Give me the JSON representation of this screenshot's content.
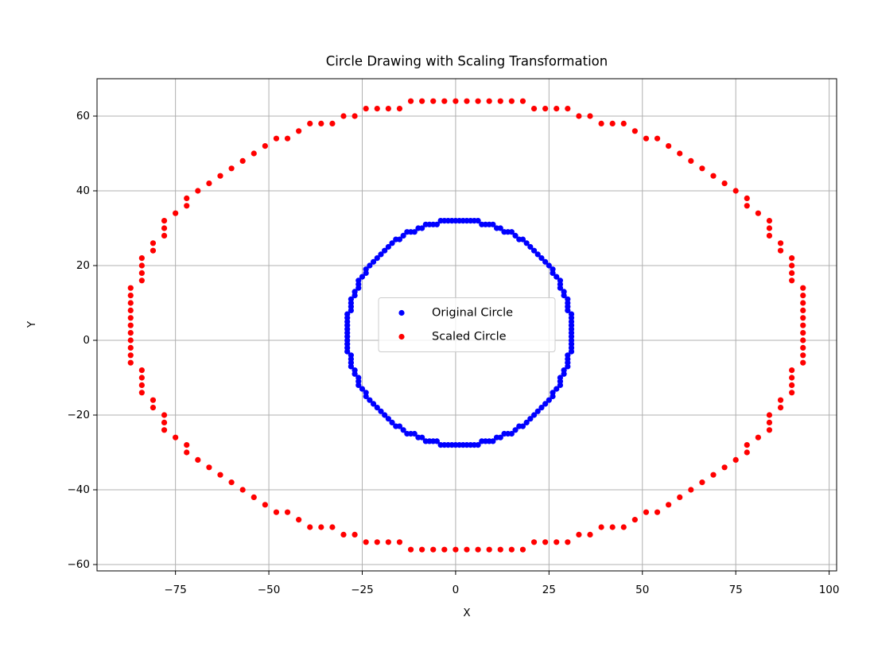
{
  "chart_data": {
    "type": "scatter",
    "title": "Circle Drawing with Scaling Transformation",
    "x_label": "X",
    "y_label": "Y",
    "xlim": [
      -96,
      102
    ],
    "ylim": [
      -61.7,
      70
    ],
    "xticks": [
      {
        "value": -75,
        "label": "−75"
      },
      {
        "value": -50,
        "label": "−50"
      },
      {
        "value": -25,
        "label": "−25"
      },
      0,
      25,
      50,
      75,
      100
    ],
    "yticks": [
      {
        "value": -60,
        "label": "−60"
      },
      {
        "value": -40,
        "label": "−40"
      },
      {
        "value": -20,
        "label": "−20"
      },
      0,
      20,
      40,
      60
    ],
    "grid": true,
    "legend": "center",
    "series": [
      {
        "name": "Original Circle",
        "color": "#0000ff",
        "x": [
          1,
          2,
          3,
          4,
          5,
          6,
          7,
          8,
          9,
          10,
          11,
          12,
          13,
          14,
          15,
          16,
          17,
          18,
          19,
          20,
          21,
          22,
          23,
          24,
          25,
          26,
          26,
          27,
          28,
          28,
          28,
          29,
          29,
          30,
          30,
          30,
          30,
          31,
          31,
          31,
          31,
          31,
          31,
          31,
          31,
          31,
          31,
          31,
          30,
          30,
          30,
          30,
          29,
          29,
          28,
          28,
          28,
          27,
          26,
          26,
          25,
          24,
          23,
          22,
          21,
          20,
          19,
          18,
          17,
          16,
          15,
          14,
          13,
          12,
          11,
          10,
          9,
          8,
          7,
          6,
          5,
          4,
          3,
          2,
          1,
          0,
          -1,
          -2,
          -3,
          -4,
          -5,
          -6,
          -7,
          -8,
          -9,
          -10,
          -11,
          -12,
          -13,
          -14,
          -15,
          -16,
          -17,
          -18,
          -19,
          -20,
          -21,
          -22,
          -23,
          -24,
          -24,
          -25,
          -26,
          -26,
          -26,
          -27,
          -27,
          -28,
          -28,
          -28,
          -28,
          -29,
          -29,
          -29,
          -29,
          -29,
          -29,
          -29,
          -29,
          -29,
          -29,
          -29,
          -28,
          -28,
          -28,
          -28,
          -27,
          -27,
          -26,
          -26,
          -26,
          -25,
          -24,
          -24,
          -23,
          -22,
          -21,
          -20,
          -19,
          -18,
          -17,
          -16,
          -15,
          -14,
          -13,
          -12,
          -11,
          -10,
          -9,
          -8,
          -7,
          -6,
          -5,
          -4,
          -3,
          -2,
          -1,
          0
        ],
        "y": [
          32,
          32,
          32,
          32,
          32,
          32,
          31,
          31,
          31,
          31,
          30,
          30,
          29,
          29,
          29,
          28,
          27,
          27,
          26,
          25,
          24,
          23,
          22,
          21,
          20,
          19,
          18,
          17,
          16,
          15,
          14,
          13,
          12,
          11,
          10,
          9,
          8,
          7,
          6,
          5,
          4,
          3,
          2,
          1,
          0,
          -1,
          -2,
          -3,
          -4,
          -5,
          -6,
          -7,
          -8,
          -9,
          -10,
          -11,
          -12,
          -13,
          -14,
          -15,
          -16,
          -17,
          -18,
          -19,
          -20,
          -21,
          -22,
          -23,
          -23,
          -24,
          -25,
          -25,
          -25,
          -26,
          -26,
          -27,
          -27,
          -27,
          -27,
          -28,
          -28,
          -28,
          -28,
          -28,
          -28,
          -28,
          -28,
          -28,
          -28,
          -28,
          -27,
          -27,
          -27,
          -27,
          -26,
          -26,
          -25,
          -25,
          -25,
          -24,
          -23,
          -23,
          -22,
          -21,
          -20,
          -19,
          -18,
          -17,
          -16,
          -15,
          -14,
          -13,
          -12,
          -11,
          -10,
          -9,
          -8,
          -7,
          -6,
          -5,
          -4,
          -3,
          -2,
          -1,
          0,
          1,
          2,
          3,
          4,
          5,
          6,
          7,
          8,
          9,
          10,
          11,
          12,
          13,
          14,
          15,
          16,
          17,
          18,
          19,
          20,
          21,
          22,
          23,
          24,
          25,
          26,
          27,
          27,
          28,
          29,
          29,
          29,
          30,
          30,
          31,
          31,
          31,
          31,
          32,
          32,
          32,
          32,
          32
        ]
      },
      {
        "name": "Scaled Circle",
        "color": "#ff0000",
        "x": [
          3,
          6,
          9,
          12,
          15,
          18,
          21,
          24,
          27,
          30,
          33,
          36,
          39,
          42,
          45,
          48,
          51,
          54,
          57,
          60,
          63,
          66,
          69,
          72,
          75,
          78,
          78,
          81,
          84,
          84,
          84,
          87,
          87,
          90,
          90,
          90,
          90,
          93,
          93,
          93,
          93,
          93,
          93,
          93,
          93,
          93,
          93,
          93,
          90,
          90,
          90,
          90,
          87,
          87,
          84,
          84,
          84,
          81,
          78,
          78,
          75,
          72,
          69,
          66,
          63,
          60,
          57,
          54,
          51,
          48,
          45,
          42,
          39,
          36,
          33,
          30,
          27,
          24,
          21,
          18,
          15,
          12,
          9,
          6,
          3,
          0,
          -3,
          -6,
          -9,
          -12,
          -15,
          -18,
          -21,
          -24,
          -27,
          -30,
          -33,
          -36,
          -39,
          -42,
          -45,
          -48,
          -51,
          -54,
          -57,
          -60,
          -63,
          -66,
          -69,
          -72,
          -72,
          -75,
          -78,
          -78,
          -78,
          -81,
          -81,
          -84,
          -84,
          -84,
          -84,
          -87,
          -87,
          -87,
          -87,
          -87,
          -87,
          -87,
          -87,
          -87,
          -87,
          -87,
          -84,
          -84,
          -84,
          -84,
          -81,
          -81,
          -78,
          -78,
          -78,
          -75,
          -72,
          -72,
          -69,
          -66,
          -63,
          -60,
          -57,
          -54,
          -51,
          -48,
          -45,
          -42,
          -39,
          -36,
          -33,
          -30,
          -27,
          -24,
          -21,
          -18,
          -15,
          -12,
          -9,
          -6,
          -3,
          0
        ],
        "y": [
          64,
          64,
          64,
          64,
          64,
          64,
          62,
          62,
          62,
          62,
          60,
          60,
          58,
          58,
          58,
          56,
          54,
          54,
          52,
          50,
          48,
          46,
          44,
          42,
          40,
          38,
          36,
          34,
          32,
          30,
          28,
          26,
          24,
          22,
          20,
          18,
          16,
          14,
          12,
          10,
          8,
          6,
          4,
          2,
          0,
          -2,
          -4,
          -6,
          -8,
          -10,
          -12,
          -14,
          -16,
          -18,
          -20,
          -22,
          -24,
          -26,
          -28,
          -30,
          -32,
          -34,
          -36,
          -38,
          -40,
          -42,
          -44,
          -46,
          -46,
          -48,
          -50,
          -50,
          -50,
          -52,
          -52,
          -54,
          -54,
          -54,
          -54,
          -56,
          -56,
          -56,
          -56,
          -56,
          -56,
          -56,
          -56,
          -56,
          -56,
          -56,
          -54,
          -54,
          -54,
          -54,
          -52,
          -52,
          -50,
          -50,
          -50,
          -48,
          -46,
          -46,
          -44,
          -42,
          -40,
          -38,
          -36,
          -34,
          -32,
          -30,
          -28,
          -26,
          -24,
          -22,
          -20,
          -18,
          -16,
          -14,
          -12,
          -10,
          -8,
          -6,
          -4,
          -2,
          0,
          2,
          4,
          6,
          8,
          10,
          12,
          14,
          16,
          18,
          20,
          22,
          24,
          26,
          28,
          30,
          32,
          34,
          36,
          38,
          40,
          42,
          44,
          46,
          48,
          50,
          52,
          54,
          54,
          56,
          58,
          58,
          58,
          60,
          60,
          62,
          62,
          62,
          62,
          64,
          64,
          64,
          64,
          64
        ]
      }
    ]
  }
}
